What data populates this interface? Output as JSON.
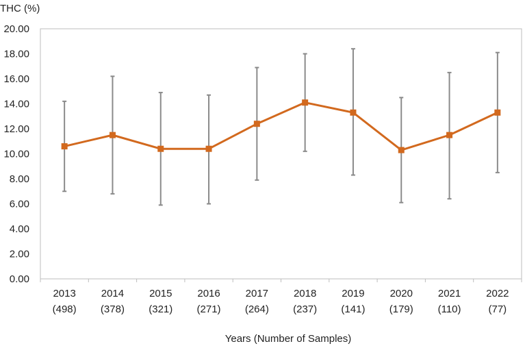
{
  "chart_data": {
    "type": "line",
    "title": "",
    "ylabel": "THC (%)",
    "xlabel": "Years (Number of Samples)",
    "ylim": [
      0,
      20
    ],
    "y_ticks": [
      "0.00",
      "2.00",
      "4.00",
      "6.00",
      "8.00",
      "10.00",
      "12.00",
      "14.00",
      "16.00",
      "18.00",
      "20.00"
    ],
    "categories": [
      {
        "year": "2013",
        "samples": "(498)"
      },
      {
        "year": "2014",
        "samples": "(378)"
      },
      {
        "year": "2015",
        "samples": "(321)"
      },
      {
        "year": "2016",
        "samples": "(271)"
      },
      {
        "year": "2017",
        "samples": "(264)"
      },
      {
        "year": "2018",
        "samples": "(237)"
      },
      {
        "year": "2019",
        "samples": "(141)"
      },
      {
        "year": "2020",
        "samples": "(179)"
      },
      {
        "year": "2021",
        "samples": "(110)"
      },
      {
        "year": "2022",
        "samples": "(77)"
      }
    ],
    "series": [
      {
        "values": [
          10.6,
          11.5,
          10.4,
          10.4,
          12.4,
          14.1,
          13.3,
          10.3,
          11.5,
          13.3
        ],
        "error_low": [
          7.0,
          6.8,
          5.9,
          6.0,
          7.9,
          10.2,
          8.3,
          6.1,
          6.4,
          8.5
        ],
        "error_high": [
          14.2,
          16.2,
          14.9,
          14.7,
          16.9,
          18.0,
          18.4,
          14.5,
          16.5,
          18.1
        ],
        "color": "#d2691e"
      }
    ],
    "error_bar_color": "#8a8a8a",
    "grid": false,
    "legend": "none"
  }
}
